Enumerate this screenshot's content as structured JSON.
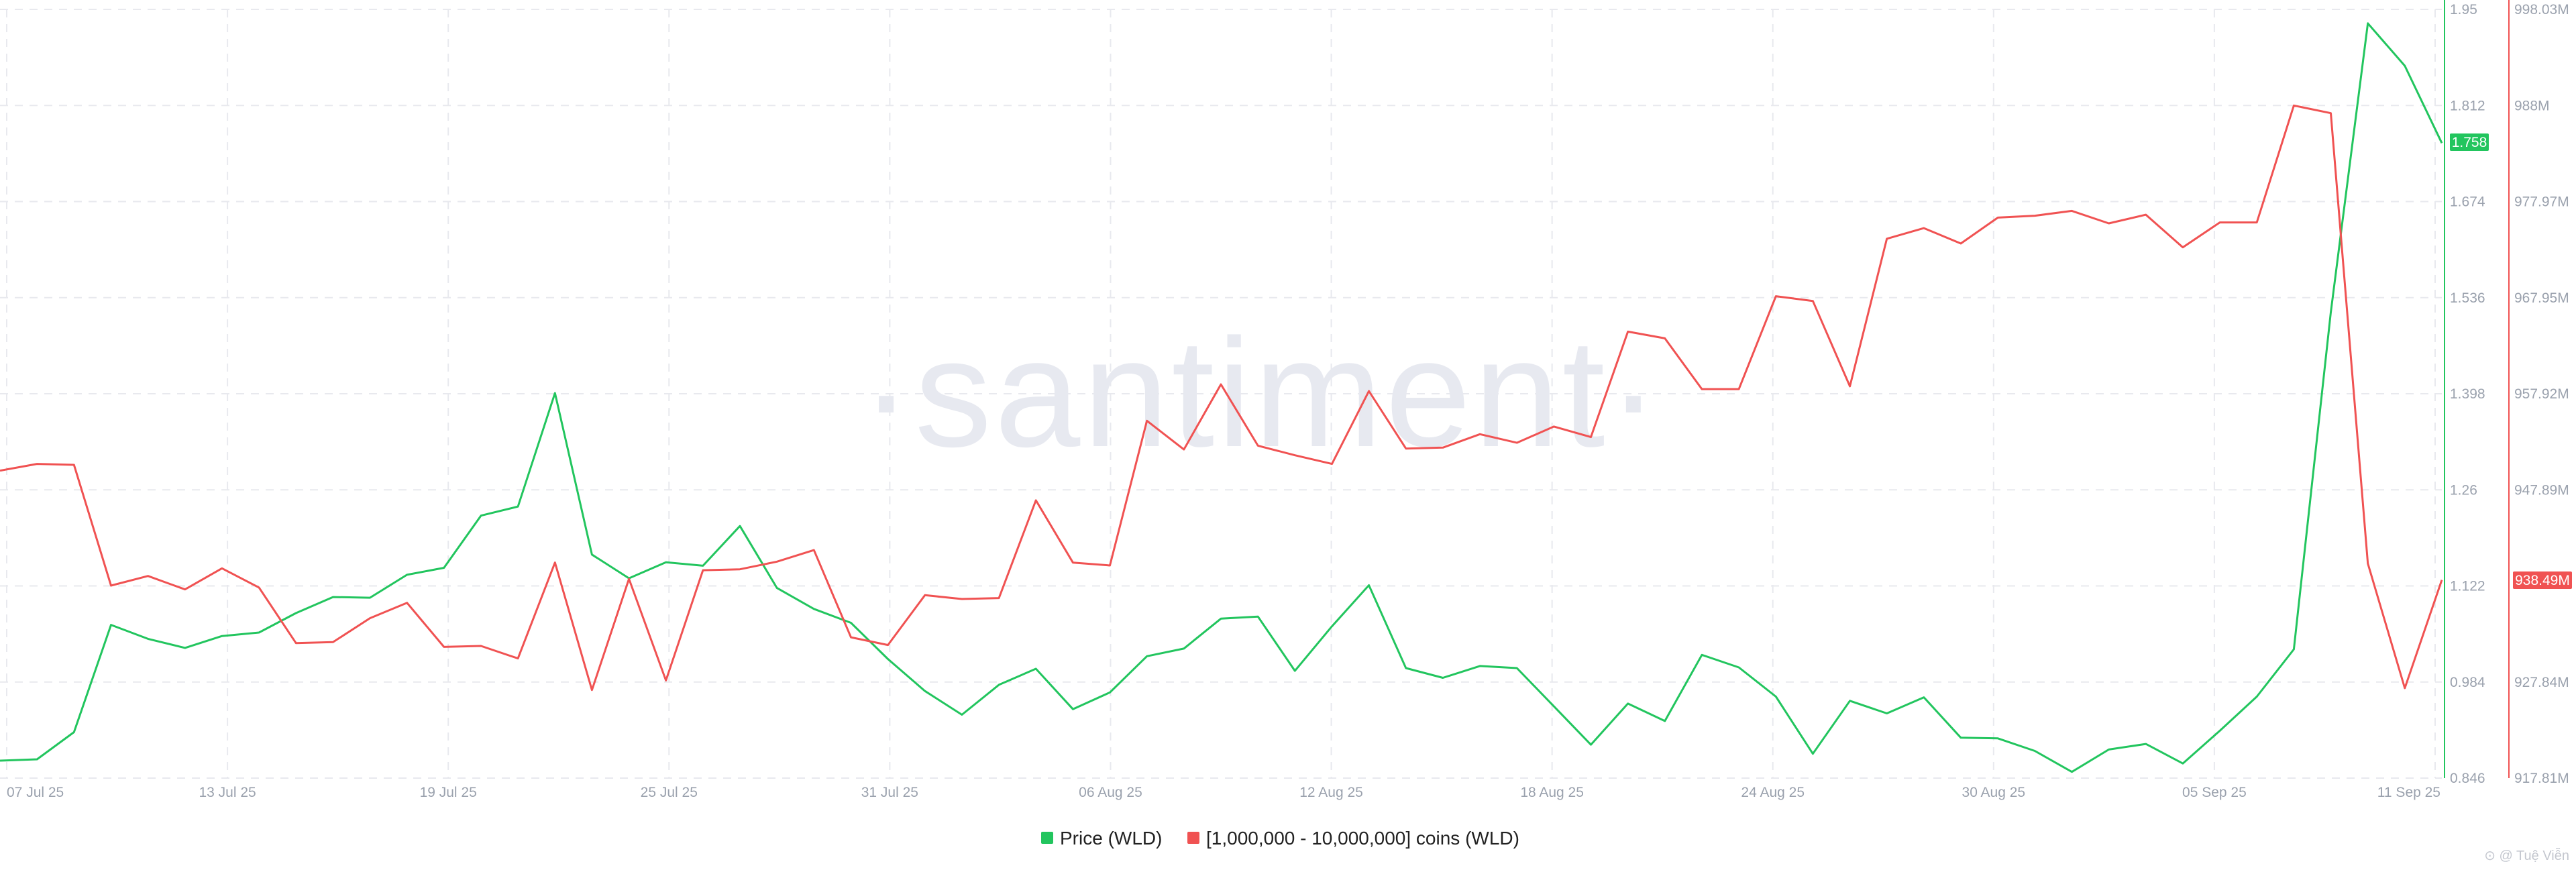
{
  "watermark": "·santiment·",
  "footer_logo": "⊙ @ Tuệ Viễn",
  "price_badge": "1.758",
  "holders_badge": "938.49M",
  "colors": {
    "price": "#22c55e",
    "holders": "#f05252",
    "grid": "#e8e9ee",
    "tick": "#9aa1ad"
  },
  "chart_data": {
    "type": "line",
    "x_ticks": [
      "07 Jul 25",
      "13 Jul 25",
      "19 Jul 25",
      "25 Jul 25",
      "31 Jul 25",
      "06 Aug 25",
      "12 Aug 25",
      "18 Aug 25",
      "24 Aug 25",
      "30 Aug 25",
      "05 Sep 25",
      "11 Sep 25"
    ],
    "x_start": "07 Jul 25",
    "x_end": "11 Sep 25",
    "y_left": {
      "ticks": [
        "1.95",
        "1.812",
        "1.674",
        "1.536",
        "1.398",
        "1.26",
        "1.122",
        "0.984",
        "0.846"
      ],
      "range": [
        0.846,
        1.95
      ]
    },
    "y_right": {
      "ticks": [
        "998.03M",
        "988M",
        "977.97M",
        "967.95M",
        "957.92M",
        "947.89M",
        "938.49M",
        "927.84M",
        "917.81M"
      ],
      "range": [
        917.81,
        998.03
      ],
      "unit": "M"
    },
    "series": [
      {
        "name": "Price (WLD)",
        "axis": "left",
        "values": [
          0.871,
          0.873,
          0.912,
          1.066,
          1.046,
          1.033,
          1.05,
          1.055,
          1.083,
          1.106,
          1.105,
          1.138,
          1.148,
          1.223,
          1.236,
          1.399,
          1.167,
          1.133,
          1.156,
          1.151,
          1.208,
          1.119,
          1.089,
          1.069,
          1.017,
          0.971,
          0.937,
          0.98,
          1.003,
          0.945,
          0.969,
          1.021,
          1.032,
          1.075,
          1.078,
          1.0,
          1.064,
          1.123,
          1.004,
          0.99,
          1.007,
          1.004,
          0.949,
          0.894,
          0.953,
          0.928,
          1.023,
          1.005,
          0.963,
          0.881,
          0.957,
          0.939,
          0.962,
          0.904,
          0.903,
          0.885,
          0.855,
          0.887,
          0.895,
          0.867,
          0.914,
          0.963,
          1.031,
          1.515,
          1.93,
          1.869,
          1.758
        ]
      },
      {
        "name": "[1,000,000 - 10,000,000] coins (WLD)",
        "axis": "right",
        "values": [
          949.9,
          950.6,
          950.5,
          937.9,
          938.9,
          937.5,
          939.7,
          937.7,
          931.9,
          932.0,
          934.5,
          936.1,
          931.5,
          931.6,
          930.3,
          940.3,
          927.0,
          938.6,
          928.0,
          939.5,
          939.6,
          940.4,
          941.6,
          932.5,
          931.7,
          936.9,
          936.5,
          936.6,
          946.8,
          940.3,
          940.0,
          955.1,
          952.1,
          958.9,
          952.5,
          951.5,
          950.6,
          958.2,
          952.2,
          952.3,
          953.7,
          952.8,
          954.5,
          953.4,
          964.4,
          963.7,
          958.4,
          958.4,
          968.1,
          967.6,
          958.7,
          974.1,
          975.2,
          973.6,
          976.3,
          976.5,
          977.0,
          975.7,
          976.6,
          973.2,
          975.8,
          975.8,
          988.0,
          987.2,
          940.2,
          927.2,
          938.49
        ]
      }
    ]
  },
  "legend": [
    {
      "label": "Price (WLD)",
      "color": "#22c55e"
    },
    {
      "label": "[1,000,000 - 10,000,000] coins (WLD)",
      "color": "#f05252"
    }
  ]
}
